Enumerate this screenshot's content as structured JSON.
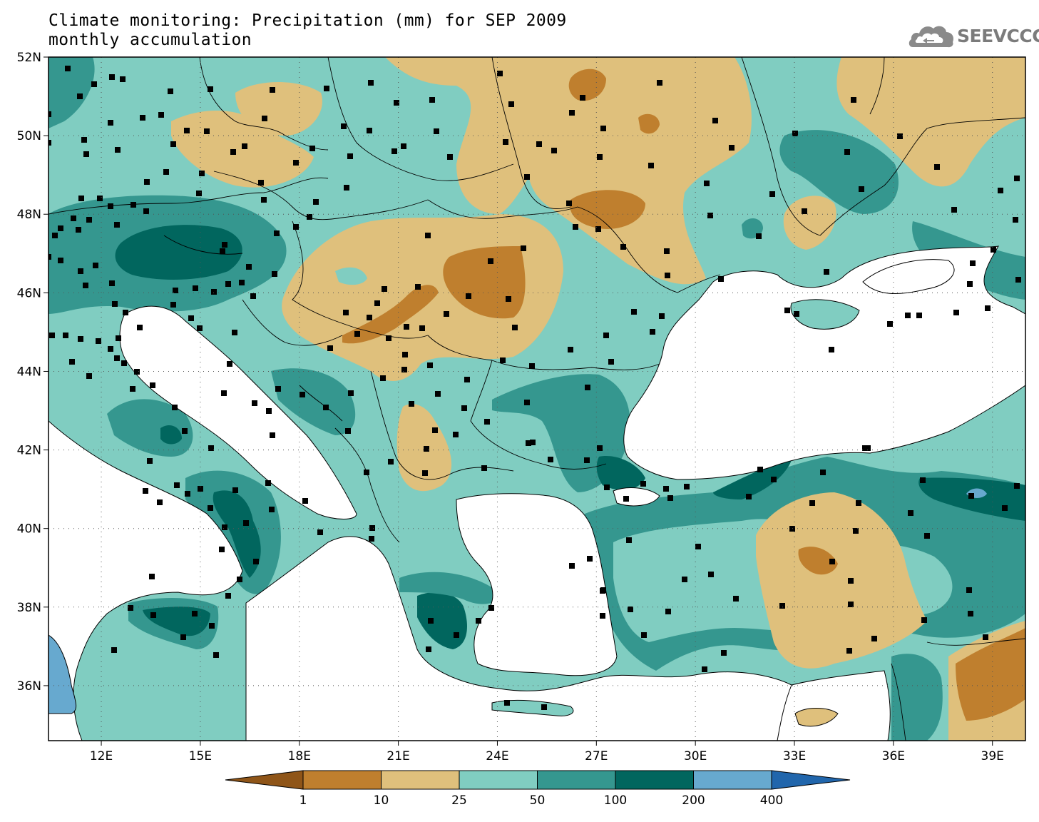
{
  "title": {
    "line1": "Climate monitoring: Precipitation (mm) for SEP 2009",
    "line2": "monthly accumulation"
  },
  "logo": {
    "text": "SEEVCCC",
    "icon": "cloud-icon"
  },
  "map": {
    "lon_range": [
      10.4,
      40.0
    ],
    "lat_range": [
      34.6,
      52.0
    ],
    "lon_ticks": [
      "12E",
      "15E",
      "18E",
      "21E",
      "24E",
      "27E",
      "30E",
      "33E",
      "36E",
      "39E"
    ],
    "lon_tick_values": [
      12,
      15,
      18,
      21,
      24,
      27,
      30,
      33,
      36,
      39
    ],
    "lat_ticks": [
      "36N",
      "38N",
      "40N",
      "42N",
      "44N",
      "46N",
      "48N",
      "50N",
      "52N"
    ],
    "lat_tick_values": [
      36,
      38,
      40,
      42,
      44,
      46,
      48,
      50,
      52
    ]
  },
  "legend": {
    "labels": [
      "1",
      "10",
      "25",
      "50",
      "100",
      "200",
      "400"
    ],
    "colors": [
      "#8f5518",
      "#bf7f2e",
      "#dfc07c",
      "#80cdc1",
      "#35978f",
      "#01665e",
      "#67a9cf",
      "#2166ac"
    ]
  },
  "colors": {
    "land_default": "#80cdc1",
    "sea": "#ffffff",
    "tan": "#dfc07c",
    "brown": "#bf7f2e",
    "teal": "#35978f",
    "dark_teal": "#01665e",
    "light_blue": "#67a9cf"
  }
}
